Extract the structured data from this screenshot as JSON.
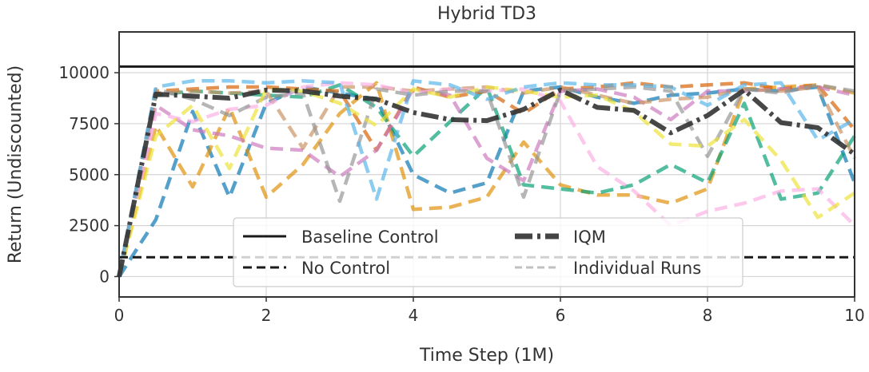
{
  "chart_data": {
    "type": "line",
    "title": "Hybrid TD3",
    "xlabel": "Time Step (1M)",
    "ylabel": "Return (Undiscounted)",
    "xlim": [
      0,
      10
    ],
    "ylim": [
      -1000,
      12000
    ],
    "xticks": [
      0,
      2,
      4,
      6,
      8,
      10
    ],
    "xtick_labels": [
      "0",
      "2",
      "4",
      "6",
      "8",
      "10"
    ],
    "yticks": [
      0,
      2500,
      5000,
      7500,
      10000
    ],
    "ytick_labels": [
      "0",
      "2500",
      "5000",
      "7500",
      "10000"
    ],
    "grid": true,
    "legend_position": "bottom-center",
    "legend": [
      {
        "label": "Baseline Control",
        "style": "solid",
        "color": "#1a1a1a"
      },
      {
        "label": "IQM",
        "style": "dashdot",
        "color": "#444444"
      },
      {
        "label": "No Control",
        "style": "dashed",
        "color": "#1a1a1a"
      },
      {
        "label": "Individual Runs",
        "style": "dashed-faint",
        "color": "#c0c0c0"
      }
    ],
    "reference_lines": [
      {
        "name": "Baseline Control",
        "y": 10300,
        "style": "solid",
        "color": "#1a1a1a"
      },
      {
        "name": "No Control",
        "y": 950,
        "style": "dashed",
        "color": "#1a1a1a"
      }
    ],
    "x": [
      0,
      0.5,
      1,
      1.5,
      2,
      2.5,
      3,
      3.5,
      4,
      4.5,
      5,
      5.5,
      6,
      6.5,
      7,
      7.5,
      8,
      8.5,
      9,
      9.5,
      10
    ],
    "iqm": [
      0,
      8950,
      8850,
      8750,
      9150,
      9100,
      8850,
      8700,
      8050,
      7700,
      7650,
      8200,
      9150,
      8300,
      8150,
      7050,
      7900,
      9150,
      7550,
      7300,
      6000
    ],
    "series": [
      {
        "color": "#0173b2",
        "values": [
          0,
          2800,
          8100,
          3900,
          8500,
          9300,
          9000,
          8700,
          5000,
          4100,
          4600,
          9100,
          9300,
          8800,
          8500,
          8900,
          9000,
          9200,
          9100,
          9300,
          4600
        ]
      },
      {
        "color": "#de8f05",
        "values": [
          0,
          7400,
          4400,
          8300,
          3900,
          5500,
          8000,
          9500,
          3300,
          3400,
          3900,
          6600,
          4500,
          4000,
          4000,
          3600,
          4300,
          9200,
          9300,
          9400,
          9000
        ]
      },
      {
        "color": "#029e73",
        "values": [
          0,
          8900,
          9100,
          9000,
          8900,
          8800,
          9400,
          8300,
          5900,
          7600,
          9300,
          4500,
          4300,
          4100,
          4500,
          5500,
          4600,
          8500,
          3800,
          4100,
          6900
        ]
      },
      {
        "color": "#d55e00",
        "values": [
          0,
          9100,
          9200,
          9300,
          9300,
          9200,
          9100,
          6200,
          9300,
          8800,
          9100,
          8000,
          9200,
          9300,
          9500,
          9300,
          9400,
          9500,
          9200,
          9400,
          7200
        ]
      },
      {
        "color": "#cc78bc",
        "values": [
          0,
          8400,
          7200,
          6900,
          6300,
          6200,
          4900,
          6200,
          9200,
          8900,
          5800,
          4700,
          9100,
          9200,
          8800,
          7700,
          9100,
          9100,
          9200,
          9300,
          8900
        ]
      },
      {
        "color": "#ca9161",
        "values": [
          0,
          9000,
          9100,
          9000,
          9100,
          6300,
          9300,
          9300,
          9100,
          9200,
          9300,
          9000,
          9300,
          8900,
          8500,
          8700,
          8800,
          9200,
          9100,
          9300,
          5800
        ]
      },
      {
        "color": "#fbafe4",
        "values": [
          0,
          8000,
          7600,
          8200,
          8400,
          9300,
          9500,
          9400,
          9000,
          9200,
          9100,
          9200,
          8600,
          5400,
          4200,
          2500,
          3200,
          3600,
          4200,
          4300,
          2500
        ]
      },
      {
        "color": "#949494",
        "values": [
          0,
          9200,
          8700,
          7900,
          8800,
          9000,
          3700,
          9200,
          8900,
          9100,
          9100,
          3900,
          9100,
          9200,
          9300,
          9100,
          5900,
          9200,
          9000,
          9400,
          9100
        ]
      },
      {
        "color": "#ece133",
        "values": [
          0,
          6900,
          8400,
          5300,
          9200,
          9100,
          8500,
          7400,
          9200,
          8800,
          9300,
          9100,
          8800,
          8900,
          8100,
          6500,
          6400,
          7700,
          5700,
          2900,
          4100
        ]
      },
      {
        "color": "#56b4e9",
        "values": [
          0,
          9300,
          9600,
          9600,
          9500,
          9600,
          9500,
          3800,
          9600,
          9400,
          8700,
          9300,
          9500,
          9400,
          9400,
          9300,
          8400,
          9400,
          9500,
          6700,
          7700
        ]
      }
    ]
  }
}
